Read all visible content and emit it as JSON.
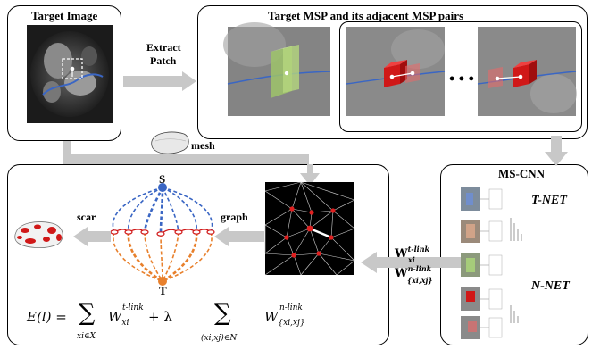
{
  "panels": {
    "target_image": {
      "title": "Target Image"
    },
    "msp": {
      "title": "Target MSP and its adjacent MSP pairs",
      "ellipsis": "• • •"
    },
    "mscnn": {
      "title": "MS-CNN",
      "t_net": "T-NET",
      "n_net": "N-NET"
    }
  },
  "arrows": {
    "extract": "Extract\nPatch",
    "extract_line1": "Extract",
    "extract_line2": "Patch",
    "mesh": "mesh",
    "graph": "graph",
    "scar": "scar"
  },
  "graph_nodes": {
    "source": "S",
    "sink": "T"
  },
  "weights": {
    "t_link_symbol": "W",
    "t_link_sup": "t-link",
    "t_link_sub": "xi",
    "n_link_symbol": "W",
    "n_link_sup": "n-link",
    "n_link_sub": "{xi,xj}"
  },
  "equation": {
    "lhs": "E(l) =",
    "term1_symbol": "W",
    "term1_sup": "t-link",
    "term1_sub": "xi",
    "sum1_under": "xi∈X",
    "plus_lambda": "+ λ",
    "sum2_under": "(xi,xj)∈N",
    "term2_symbol": "W",
    "term2_sup": "n-link",
    "term2_sub": "{xi,xj}"
  },
  "colors": {
    "blue": "#3a66c4",
    "orange": "#e8802c",
    "red": "#d01818",
    "arrow_gray": "#c8c8c8"
  }
}
